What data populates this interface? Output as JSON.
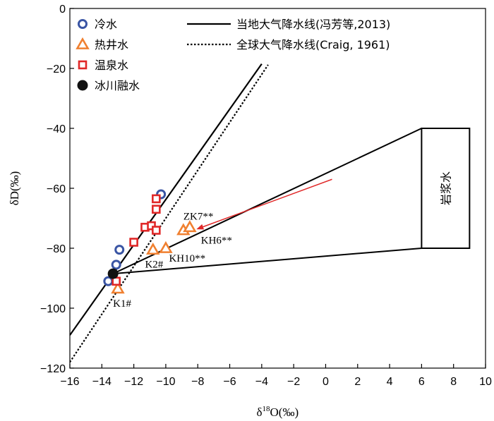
{
  "chart_data": {
    "type": "scatter",
    "xlabel": "δ18O(‰)",
    "xlabel_main": "δ",
    "xlabel_sup": "18",
    "xlabel_rest": "O(‰)",
    "ylabel": "δD(‰)",
    "xlim": [
      -16,
      10
    ],
    "ylim": [
      -120,
      0
    ],
    "xticks": [
      -16,
      -14,
      -12,
      -10,
      -8,
      -6,
      -4,
      -2,
      0,
      2,
      4,
      6,
      8,
      10
    ],
    "yticks": [
      0,
      -20,
      -40,
      -60,
      -80,
      -100,
      -120
    ],
    "grid": false,
    "legend_placement": "top",
    "series": [
      {
        "name": "冷水",
        "marker": "circle-open",
        "color": "#3a55a4",
        "points": [
          [
            -13.6,
            -91
          ],
          [
            -13.1,
            -85.5
          ],
          [
            -12.9,
            -80.5
          ],
          [
            -10.3,
            -62
          ]
        ]
      },
      {
        "name": "热井水",
        "marker": "triangle-open",
        "color": "#f08030",
        "points": [
          [
            -13.0,
            -93.5
          ],
          [
            -10.8,
            -80.5
          ],
          [
            -10.0,
            -80
          ],
          [
            -8.9,
            -74
          ],
          [
            -8.5,
            -73
          ]
        ]
      },
      {
        "name": "温泉水",
        "marker": "square-open",
        "color": "#e02828",
        "points": [
          [
            -13.1,
            -91
          ],
          [
            -12.0,
            -78
          ],
          [
            -11.3,
            -73
          ],
          [
            -10.9,
            -72.5
          ],
          [
            -10.6,
            -74
          ],
          [
            -10.6,
            -67
          ],
          [
            -10.6,
            -63.5
          ]
        ]
      },
      {
        "name": "冰川融水",
        "marker": "circle-filled",
        "color": "#111111",
        "points": [
          [
            -13.3,
            -88.5
          ]
        ]
      }
    ],
    "lines": [
      {
        "name": "当地大气降水线(冯芳等,2013)",
        "style": "solid",
        "from": [
          -16,
          -109
        ],
        "to": [
          -4,
          -18.5
        ]
      },
      {
        "name": "全球大气降水线(Craig, 1961)",
        "style": "dotted",
        "from": [
          -16,
          -118
        ],
        "to": [
          -3.6,
          -18.8
        ]
      }
    ],
    "mixing_lines": [
      {
        "from": [
          -13.3,
          -88.5
        ],
        "to": [
          6,
          -40
        ]
      },
      {
        "from": [
          -13.3,
          -88.5
        ],
        "to": [
          6,
          -80
        ]
      }
    ],
    "magma_box": {
      "label": "岩浆水",
      "x": [
        6,
        9
      ],
      "y": [
        -80,
        -40
      ]
    },
    "arrow": {
      "color": "#e02828",
      "from": [
        0.4,
        -57
      ],
      "to": [
        -8.0,
        -73.5
      ]
    },
    "annotations": [
      {
        "text": "ZK7**",
        "x": -8.9,
        "y": -70.5
      },
      {
        "text": "KH6**",
        "x": -7.8,
        "y": -78.5
      },
      {
        "text": "K2#",
        "x": -11.3,
        "y": -86.5
      },
      {
        "text": "KH10**",
        "x": -9.8,
        "y": -84.5
      },
      {
        "text": "K1#",
        "x": -13.3,
        "y": -99.5
      }
    ]
  }
}
